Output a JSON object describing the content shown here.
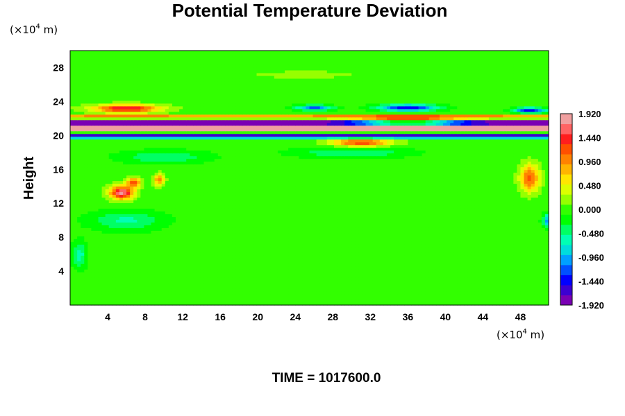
{
  "chart_data": {
    "type": "heatmap",
    "title": "Potential Temperature Deviation",
    "ylabel": "Height",
    "x_unit": {
      "prefix": "(×10",
      "exp": "4",
      "suffix": " m)"
    },
    "y_unit": {
      "prefix": "(×10",
      "exp": "4",
      "suffix": " m)"
    },
    "xlim": [
      0,
      51
    ],
    "ylim": [
      0,
      30
    ],
    "x_ticks": [
      4,
      8,
      12,
      16,
      20,
      24,
      28,
      32,
      36,
      40,
      44,
      48
    ],
    "y_ticks": [
      4,
      8,
      12,
      16,
      20,
      24,
      28
    ],
    "colorbar": {
      "range": [
        -1.92,
        1.92
      ],
      "tick_values": [
        1.92,
        1.44,
        0.96,
        0.48,
        0.0,
        -0.48,
        -0.96,
        -1.44,
        -1.92
      ],
      "tick_labels": [
        "1.920",
        "1.440",
        "0.960",
        "0.480",
        "0.000",
        "-0.480",
        "-0.960",
        "-1.440",
        "-1.920"
      ],
      "colors": [
        "#7a00b4",
        "#3c00d2",
        "#0000ff",
        "#0050ff",
        "#00a0ff",
        "#00dcdc",
        "#00ffb4",
        "#00ff64",
        "#00ff00",
        "#32ff00",
        "#96ff00",
        "#dcff00",
        "#ffe600",
        "#ffb400",
        "#ff8200",
        "#ff5000",
        "#ff1e1e",
        "#ff6464",
        "#f0a0a0"
      ]
    },
    "field": {
      "background": 0.0,
      "features": [
        {
          "type": "band",
          "x": [
            0,
            51
          ],
          "y": [
            20.4,
            21.2
          ],
          "value": 1.95
        },
        {
          "type": "band",
          "x": [
            0,
            51
          ],
          "y": [
            21.2,
            21.9
          ],
          "value": -1.9
        },
        {
          "type": "band",
          "x": [
            0,
            51
          ],
          "y": [
            19.7,
            20.2
          ],
          "value": -1.6
        },
        {
          "type": "band",
          "x": [
            0,
            51
          ],
          "y": [
            22.0,
            22.5
          ],
          "value": 0.9
        },
        {
          "type": "blob",
          "cx": 6,
          "cy": 23.2,
          "rx": 4.5,
          "ry": 0.6,
          "value": 1.6
        },
        {
          "type": "blob",
          "cx": 5.5,
          "cy": 13.3,
          "rx": 1.6,
          "ry": 1.0,
          "value": 1.8
        },
        {
          "type": "blob",
          "cx": 6.8,
          "cy": 14.5,
          "rx": 0.9,
          "ry": 0.7,
          "value": 1.3
        },
        {
          "type": "blob",
          "cx": 9.5,
          "cy": 14.8,
          "rx": 0.7,
          "ry": 0.9,
          "value": 1.0
        },
        {
          "type": "blob",
          "cx": 36,
          "cy": 21.6,
          "rx": 7,
          "ry": 0.7,
          "value": 1.8
        },
        {
          "type": "blob",
          "cx": 31,
          "cy": 19.2,
          "rx": 4,
          "ry": 0.6,
          "value": 1.3
        },
        {
          "type": "blob",
          "cx": 36,
          "cy": 23.3,
          "rx": 4,
          "ry": 0.5,
          "value": -1.5
        },
        {
          "type": "blob",
          "cx": 26,
          "cy": 23.3,
          "rx": 2.5,
          "ry": 0.4,
          "value": -1.2
        },
        {
          "type": "blob",
          "cx": 49,
          "cy": 23.0,
          "rx": 2.2,
          "ry": 0.4,
          "value": -1.5
        },
        {
          "type": "blob",
          "cx": 49,
          "cy": 15.0,
          "rx": 1.3,
          "ry": 2.0,
          "value": 1.2
        },
        {
          "type": "blob",
          "cx": 51,
          "cy": 10,
          "rx": 0.8,
          "ry": 1.0,
          "value": -1.0
        },
        {
          "type": "blob",
          "cx": 6,
          "cy": 10,
          "rx": 5,
          "ry": 1.5,
          "value": -0.55
        },
        {
          "type": "blob",
          "cx": 10,
          "cy": 17.5,
          "rx": 6,
          "ry": 1.0,
          "value": -0.5
        },
        {
          "type": "blob",
          "cx": 30,
          "cy": 18,
          "rx": 8,
          "ry": 0.8,
          "value": -0.5
        },
        {
          "type": "blob",
          "cx": 25,
          "cy": 27.2,
          "rx": 10,
          "ry": 0.8,
          "value": 0.15
        },
        {
          "type": "blob",
          "cx": 1,
          "cy": 6,
          "rx": 1,
          "ry": 2,
          "value": -0.6
        }
      ]
    },
    "time_label": "TIME = 1017600.0"
  }
}
